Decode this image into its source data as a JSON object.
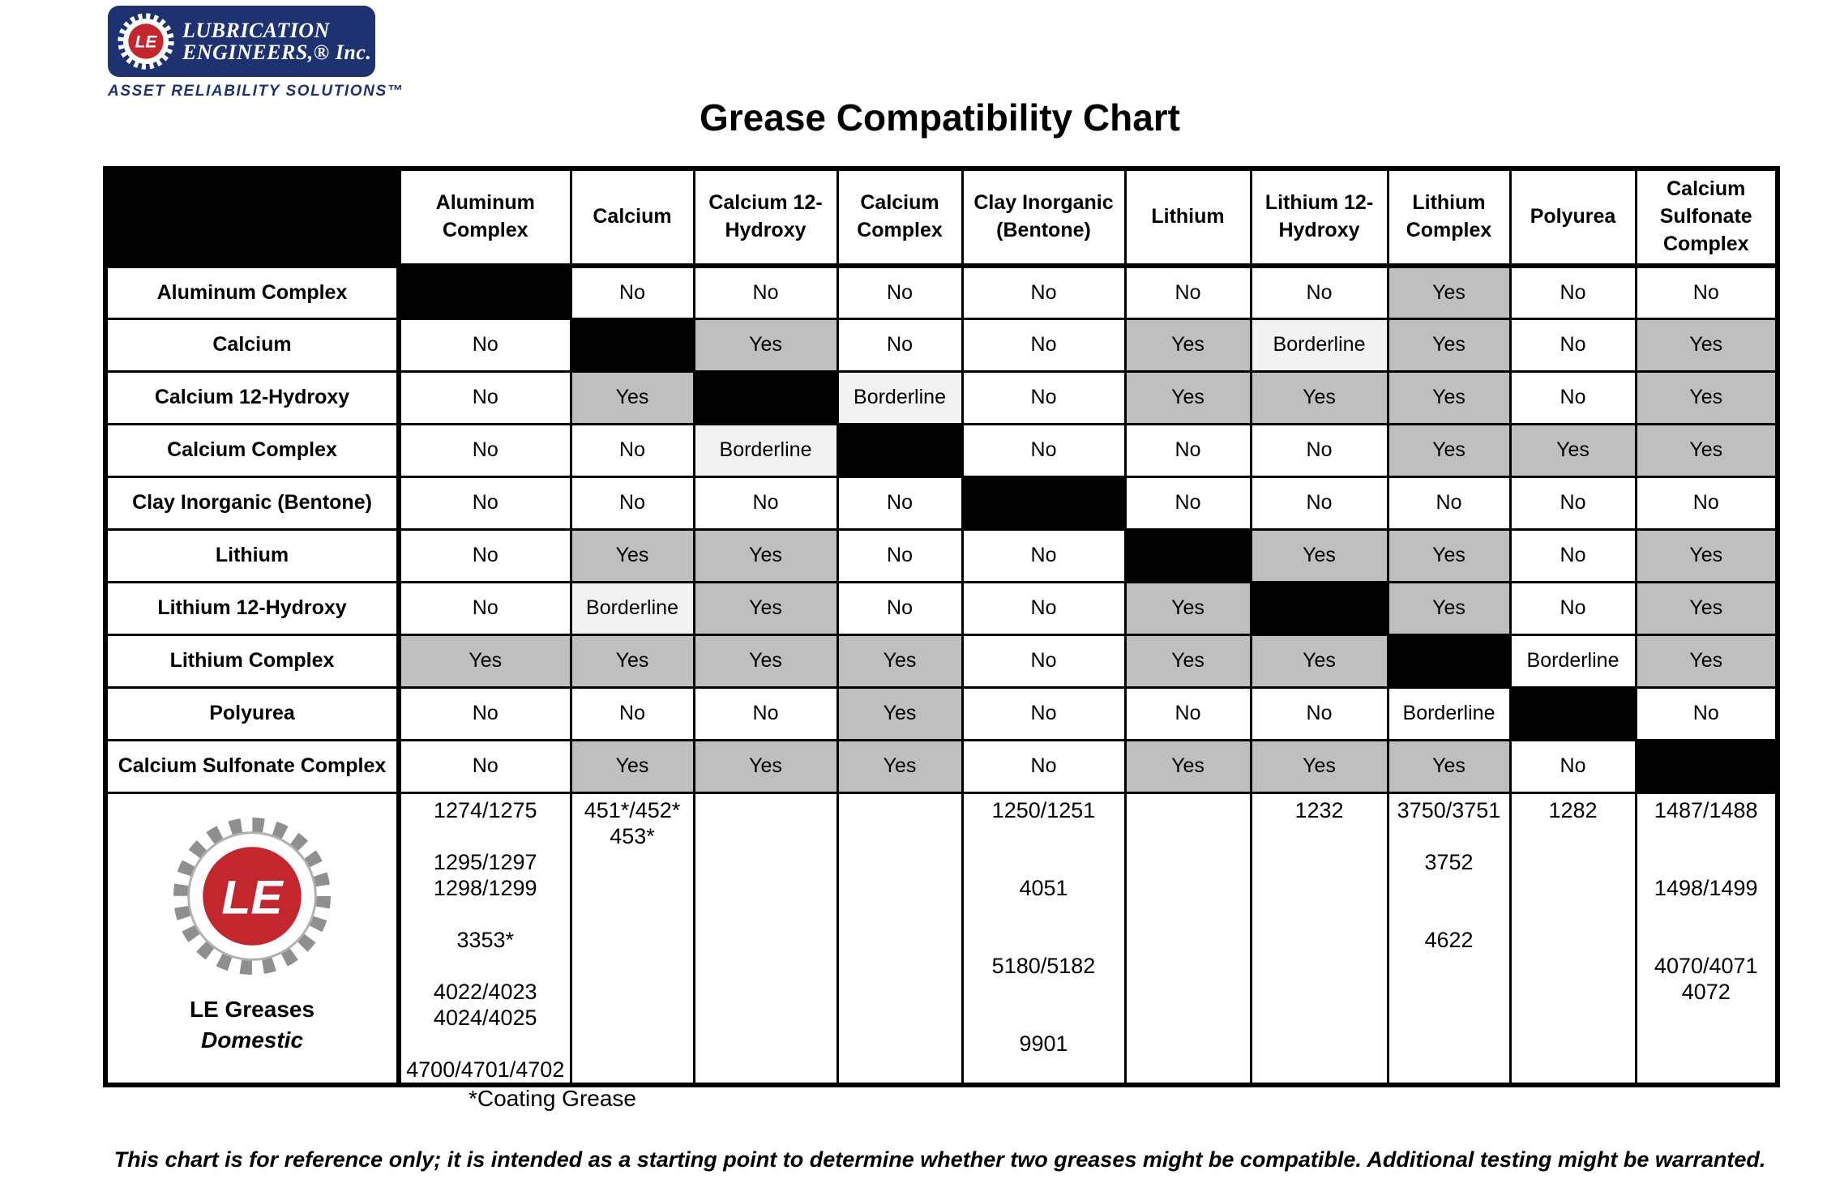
{
  "logo": {
    "line1": "LUBRICATION",
    "line2": "ENGINEERS,® Inc.",
    "tagline": "ASSET RELIABILITY SOLUTIONS™",
    "monogram": "LE",
    "navy": "#1e3272",
    "red": "#c4262e"
  },
  "title": "Grease Compatibility Chart",
  "table": {
    "columns": [
      "Aluminum Complex",
      "Calcium",
      "Calcium 12-Hydroxy",
      "Calcium Complex",
      "Clay Inorganic (Bentone)",
      "Lithium",
      "Lithium 12-Hydroxy",
      "Lithium Complex",
      "Polyurea",
      "Calcium Sulfonate Complex"
    ],
    "cell_codes": {
      "N": {
        "label": "No",
        "bg": "#ffffff"
      },
      "Y": {
        "label": "Yes",
        "bg": "#bfbfbf"
      },
      "B": {
        "label": "Borderline",
        "bg": "#f2f2f2"
      },
      "BW": {
        "label": "Borderline",
        "bg": "#ffffff"
      },
      "D": {
        "label": "",
        "bg": "#000000"
      }
    },
    "rows": [
      {
        "label": "Aluminum Complex",
        "cells": [
          "D",
          "N",
          "N",
          "N",
          "N",
          "N",
          "N",
          "Y",
          "N",
          "N"
        ]
      },
      {
        "label": "Calcium",
        "cells": [
          "N",
          "D",
          "Y",
          "N",
          "N",
          "Y",
          "B",
          "Y",
          "N",
          "Y"
        ]
      },
      {
        "label": "Calcium 12-Hydroxy",
        "cells": [
          "N",
          "Y",
          "D",
          "B",
          "N",
          "Y",
          "Y",
          "Y",
          "N",
          "Y"
        ]
      },
      {
        "label": "Calcium Complex",
        "cells": [
          "N",
          "N",
          "B",
          "D",
          "N",
          "N",
          "N",
          "Y",
          "Y",
          "Y"
        ]
      },
      {
        "label": "Clay Inorganic (Bentone)",
        "cells": [
          "N",
          "N",
          "N",
          "N",
          "D",
          "N",
          "N",
          "N",
          "N",
          "N"
        ]
      },
      {
        "label": "Lithium",
        "cells": [
          "N",
          "Y",
          "Y",
          "N",
          "N",
          "D",
          "Y",
          "Y",
          "N",
          "Y"
        ]
      },
      {
        "label": "Lithium 12-Hydroxy",
        "cells": [
          "N",
          "B",
          "Y",
          "N",
          "N",
          "Y",
          "D",
          "Y",
          "N",
          "Y"
        ]
      },
      {
        "label": "Lithium Complex",
        "cells": [
          "Y",
          "Y",
          "Y",
          "Y",
          "N",
          "Y",
          "Y",
          "D",
          "BW",
          "Y"
        ]
      },
      {
        "label": "Polyurea",
        "cells": [
          "N",
          "N",
          "N",
          "Y",
          "N",
          "N",
          "N",
          "BW",
          "D",
          "N"
        ]
      },
      {
        "label": "Calcium Sulfonate Complex",
        "cells": [
          "N",
          "Y",
          "Y",
          "Y",
          "N",
          "Y",
          "Y",
          "Y",
          "N",
          "D"
        ]
      }
    ],
    "footer_row": {
      "label_title": "LE Greases",
      "label_subtitle": "Domestic",
      "products": [
        [
          "1274/1275",
          "",
          "1295/1297",
          "1298/1299",
          "",
          "3353*",
          "",
          "4022/4023",
          "4024/4025",
          "",
          "4700/4701/4702"
        ],
        [
          "451*/452*",
          "453*"
        ],
        [],
        [],
        [
          "1250/1251",
          "",
          "",
          "4051",
          "",
          "",
          "5180/5182",
          "",
          "",
          "9901"
        ],
        [],
        [
          "1232"
        ],
        [
          "3750/3751",
          "",
          "3752",
          "",
          "",
          "4622"
        ],
        [
          "1282"
        ],
        [
          "1487/1488",
          "",
          "",
          "1498/1499",
          "",
          "",
          "4070/4071",
          "4072"
        ]
      ]
    }
  },
  "footnote": "*Coating Grease",
  "disclaimer": "This chart is for reference only; it is intended as a starting point to determine whether two greases might be compatible. Additional testing might be warranted."
}
